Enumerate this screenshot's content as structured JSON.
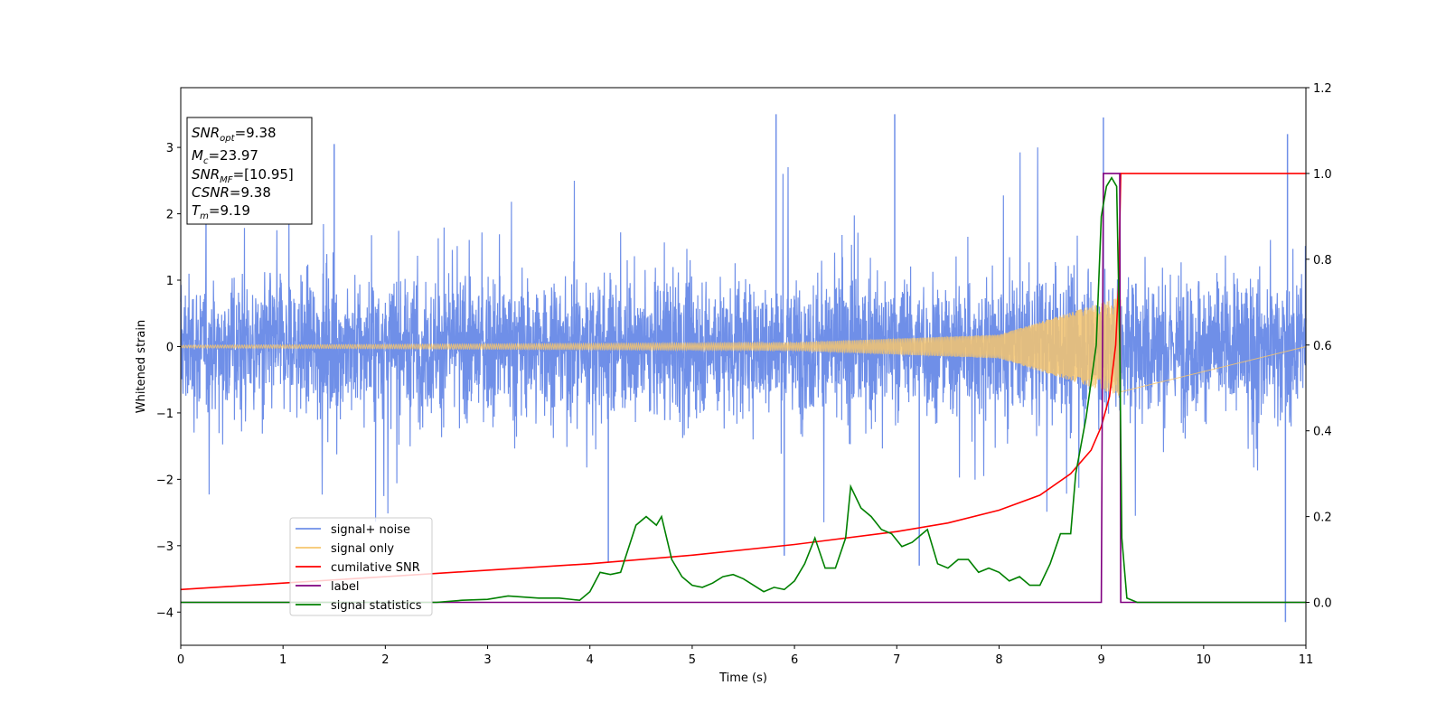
{
  "chart_data": {
    "type": "line",
    "xlabel": "Time (s)",
    "ylabel": "Whitened strain",
    "xlim": [
      0,
      11
    ],
    "ylim": [
      -4.5,
      3.9
    ],
    "y2lim": [
      -0.1,
      1.2
    ],
    "x_ticks": [
      "0",
      "1",
      "2",
      "3",
      "4",
      "5",
      "6",
      "7",
      "8",
      "9",
      "10",
      "11"
    ],
    "y_ticks": [
      "−4",
      "−3",
      "−2",
      "−1",
      "0",
      "1",
      "2",
      "3"
    ],
    "y2_ticks": [
      "0.0",
      "0.2",
      "0.4",
      "0.6",
      "0.8",
      "1.0",
      "1.2"
    ],
    "legend_position": "lower-left",
    "info_box": {
      "snr_opt": {
        "base": "SNR",
        "sub": "opt",
        "value": "=9.38"
      },
      "mc": {
        "base": "M",
        "sub": "c",
        "value": "=23.97"
      },
      "snr_mf": {
        "base": "SNR",
        "sub": "MF",
        "value": "=[10.95]"
      },
      "csnr": {
        "base": "CSNR",
        "sub": "",
        "value": "=9.38"
      },
      "tm": {
        "base": "T",
        "sub": "m",
        "value": "=9.19"
      }
    },
    "series": [
      {
        "name": "signal+ noise",
        "color": "#6f8fe8",
        "axis": "left",
        "kind": "noise",
        "typical_band": [
          -1.3,
          1.3
        ],
        "extreme_peaks": [
          {
            "x": 5.82,
            "y": 3.5
          },
          {
            "x": 6.98,
            "y": 3.5
          },
          {
            "x": 9.02,
            "y": 3.45
          },
          {
            "x": 10.82,
            "y": 3.2
          },
          {
            "x": 1.5,
            "y": 3.05
          },
          {
            "x": 10.8,
            "y": -4.15
          },
          {
            "x": 4.18,
            "y": -3.25
          },
          {
            "x": 5.9,
            "y": -3.15
          },
          {
            "x": 7.22,
            "y": -3.3
          }
        ]
      },
      {
        "name": "signal only",
        "color": "#f6c66e",
        "axis": "left",
        "kind": "chirp",
        "merger_time": 9.19,
        "amplitude_at": [
          {
            "x": 0,
            "y": 0.02
          },
          {
            "x": 6,
            "y": 0.06
          },
          {
            "x": 8,
            "y": 0.18
          },
          {
            "x": 9.19,
            "y": 0.75
          }
        ]
      },
      {
        "name": "cumilative SNR",
        "color": "#ff0000",
        "axis": "right",
        "points": [
          [
            0,
            0.03
          ],
          [
            1,
            0.045
          ],
          [
            2,
            0.06
          ],
          [
            3,
            0.075
          ],
          [
            4,
            0.09
          ],
          [
            5,
            0.11
          ],
          [
            6,
            0.135
          ],
          [
            7,
            0.165
          ],
          [
            7.5,
            0.185
          ],
          [
            8,
            0.215
          ],
          [
            8.4,
            0.25
          ],
          [
            8.7,
            0.3
          ],
          [
            8.9,
            0.355
          ],
          [
            9.0,
            0.41
          ],
          [
            9.08,
            0.48
          ],
          [
            9.14,
            0.6
          ],
          [
            9.17,
            0.75
          ],
          [
            9.19,
            1.0
          ],
          [
            11,
            1.0
          ]
        ]
      },
      {
        "name": "label",
        "color": "#800080",
        "axis": "right",
        "points": [
          [
            0,
            0.0
          ],
          [
            9.0,
            0.0
          ],
          [
            9.02,
            1.0
          ],
          [
            9.18,
            1.0
          ],
          [
            9.19,
            0.0
          ],
          [
            11,
            0.0
          ]
        ]
      },
      {
        "name": "signal statistics",
        "color": "#008000",
        "axis": "right",
        "points": [
          [
            0,
            0.0
          ],
          [
            1,
            0.0
          ],
          [
            2,
            0.0
          ],
          [
            2.5,
            0.0
          ],
          [
            2.75,
            0.005
          ],
          [
            3.0,
            0.007
          ],
          [
            3.2,
            0.015
          ],
          [
            3.5,
            0.01
          ],
          [
            3.7,
            0.01
          ],
          [
            3.9,
            0.005
          ],
          [
            4.0,
            0.025
          ],
          [
            4.1,
            0.07
          ],
          [
            4.2,
            0.065
          ],
          [
            4.3,
            0.07
          ],
          [
            4.45,
            0.18
          ],
          [
            4.55,
            0.2
          ],
          [
            4.65,
            0.18
          ],
          [
            4.7,
            0.2
          ],
          [
            4.8,
            0.1
          ],
          [
            4.9,
            0.06
          ],
          [
            5.0,
            0.04
          ],
          [
            5.1,
            0.035
          ],
          [
            5.2,
            0.045
          ],
          [
            5.3,
            0.06
          ],
          [
            5.4,
            0.065
          ],
          [
            5.5,
            0.055
          ],
          [
            5.6,
            0.04
          ],
          [
            5.7,
            0.025
          ],
          [
            5.8,
            0.035
          ],
          [
            5.9,
            0.03
          ],
          [
            6.0,
            0.05
          ],
          [
            6.1,
            0.09
          ],
          [
            6.2,
            0.15
          ],
          [
            6.3,
            0.08
          ],
          [
            6.4,
            0.08
          ],
          [
            6.5,
            0.15
          ],
          [
            6.55,
            0.27
          ],
          [
            6.65,
            0.22
          ],
          [
            6.75,
            0.2
          ],
          [
            6.85,
            0.17
          ],
          [
            6.95,
            0.16
          ],
          [
            7.05,
            0.13
          ],
          [
            7.15,
            0.14
          ],
          [
            7.3,
            0.17
          ],
          [
            7.4,
            0.09
          ],
          [
            7.5,
            0.08
          ],
          [
            7.6,
            0.1
          ],
          [
            7.7,
            0.1
          ],
          [
            7.8,
            0.07
          ],
          [
            7.9,
            0.08
          ],
          [
            8.0,
            0.07
          ],
          [
            8.1,
            0.05
          ],
          [
            8.2,
            0.06
          ],
          [
            8.3,
            0.04
          ],
          [
            8.4,
            0.04
          ],
          [
            8.5,
            0.09
          ],
          [
            8.6,
            0.16
          ],
          [
            8.7,
            0.16
          ],
          [
            8.75,
            0.3
          ],
          [
            8.85,
            0.43
          ],
          [
            8.95,
            0.6
          ],
          [
            9.0,
            0.9
          ],
          [
            9.05,
            0.97
          ],
          [
            9.1,
            0.99
          ],
          [
            9.15,
            0.97
          ],
          [
            9.18,
            0.6
          ],
          [
            9.2,
            0.15
          ],
          [
            9.25,
            0.01
          ],
          [
            9.35,
            0.0
          ],
          [
            11,
            0.0
          ]
        ]
      }
    ]
  }
}
